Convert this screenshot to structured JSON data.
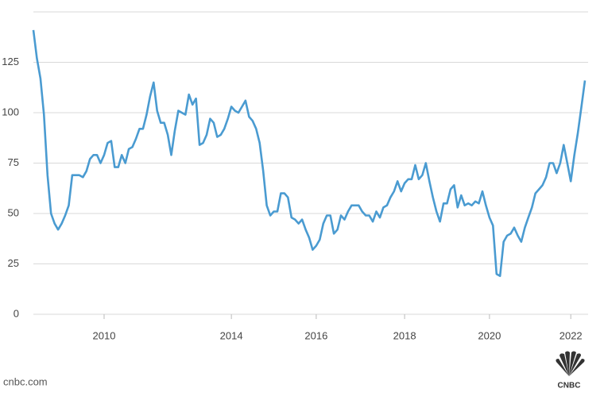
{
  "chart_data": {
    "type": "line",
    "color": "#4a9bd1",
    "values": [
      141,
      127,
      117,
      99,
      69,
      50,
      45,
      42,
      45,
      49,
      54,
      69,
      69,
      69,
      68,
      71,
      77,
      79,
      79,
      75,
      79,
      85,
      86,
      73,
      73,
      79,
      75,
      82,
      83,
      87,
      92,
      92,
      99,
      108,
      115,
      101,
      95,
      95,
      89,
      79,
      91,
      101,
      100,
      99,
      109,
      104,
      107,
      84,
      85,
      89,
      97,
      95,
      88,
      89,
      92,
      97,
      103,
      101,
      100,
      103,
      106,
      98,
      96,
      92,
      85,
      71,
      54,
      49,
      51,
      51,
      60,
      60,
      58,
      48,
      47,
      45,
      47,
      42,
      38,
      32,
      34,
      37,
      45,
      49,
      49,
      40,
      42,
      49,
      47,
      51,
      54,
      54,
      54,
      51,
      49,
      49,
      46,
      51,
      48,
      53,
      54,
      58,
      61,
      66,
      61,
      65,
      67,
      67,
      74,
      67,
      69,
      75,
      66,
      58,
      51,
      46,
      55,
      55,
      62,
      64,
      53,
      59,
      54,
      55,
      54,
      56,
      55,
      61,
      54,
      48,
      44,
      20,
      19,
      36,
      39,
      40,
      43,
      39,
      36,
      43,
      48,
      53,
      60,
      62,
      64,
      68,
      75,
      75,
      70,
      75,
      84,
      75,
      66,
      79,
      90,
      103,
      116
    ],
    "xlim": [
      0,
      156
    ],
    "xticks": [
      {
        "value": 20,
        "label": "2010"
      },
      {
        "value": 56,
        "label": "2014"
      },
      {
        "value": 80,
        "label": "2016"
      },
      {
        "value": 105,
        "label": "2018"
      },
      {
        "value": 129,
        "label": "2020"
      },
      {
        "value": 152,
        "label": "2022"
      }
    ],
    "ylim": [
      0,
      150
    ],
    "yticks": [
      0,
      25,
      50,
      75,
      100,
      125
    ],
    "grid": true,
    "source": "cnbc.com",
    "logo": "CNBC"
  }
}
